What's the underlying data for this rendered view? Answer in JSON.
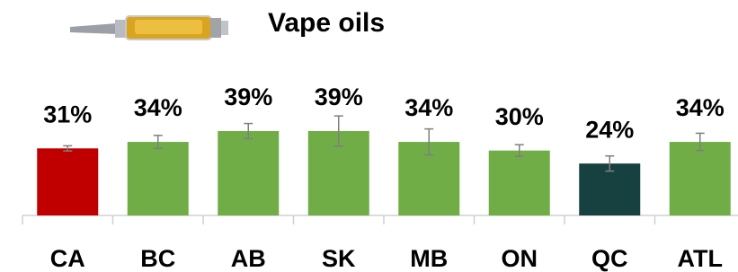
{
  "chart_data": {
    "type": "bar",
    "title": "Vape oils",
    "categories": [
      "CA",
      "BC",
      "AB",
      "SK",
      "MB",
      "ON",
      "QC",
      "ATL"
    ],
    "values": [
      31,
      34,
      39,
      39,
      34,
      30,
      24,
      34
    ],
    "value_labels": [
      "31%",
      "34%",
      "39%",
      "39%",
      "34%",
      "30%",
      "24%",
      "34%"
    ],
    "errors": [
      1.2,
      3,
      3.5,
      7,
      6,
      2.7,
      3.5,
      4
    ],
    "colors": [
      "#c00000",
      "#70ad47",
      "#70ad47",
      "#70ad47",
      "#70ad47",
      "#70ad47",
      "#174040",
      "#70ad47"
    ]
  }
}
